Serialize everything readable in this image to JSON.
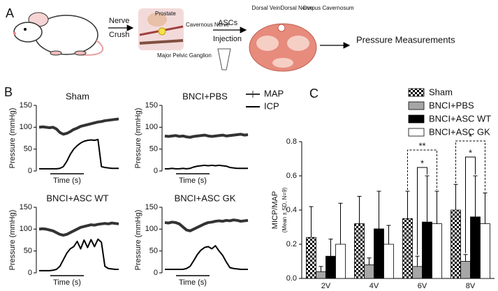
{
  "panel_a": {
    "label": "A",
    "nerve": "Nerve",
    "crush": "Crush",
    "prostate": "Prostate",
    "cavernous_nerve": "Cavernous Nerve",
    "ganglion": "Major Pelvic Ganglion",
    "ascs": "ASCs",
    "injection": "Injection",
    "dorsal_vein": "Dorsal Vein",
    "dorsal_nerve": "Dorsal Nerve",
    "corpus": "Corpus Cavernosum",
    "pressure": "Pressure Measurements"
  },
  "panel_b": {
    "label": "B"
  },
  "panel_c": {
    "label": "C"
  },
  "chart_data": [
    {
      "type": "line",
      "title": "Sham",
      "x_label": "Time (s)",
      "y_label": "Pressure (mmHg)",
      "ylim": [
        0,
        150
      ],
      "yticks": [
        0,
        50,
        100,
        150
      ],
      "series": [
        {
          "name": "MAP",
          "color": "#333333",
          "values": [
            100,
            101,
            100,
            99,
            100,
            96,
            88,
            84,
            86,
            90,
            95,
            98,
            102,
            104,
            106,
            108,
            110,
            112,
            113,
            115,
            116,
            117,
            118,
            119
          ]
        },
        {
          "name": "ICP",
          "color": "#000000",
          "values": [
            5,
            5,
            5,
            5,
            5,
            5,
            6,
            10,
            22,
            38,
            50,
            58,
            64,
            68,
            70,
            71,
            70,
            72,
            10,
            8,
            7,
            6,
            6,
            6
          ]
        }
      ]
    },
    {
      "type": "line",
      "title": "BNCI+PBS",
      "x_label": "Time (s)",
      "y_label": "Pressure (mmHg)",
      "ylim": [
        0,
        150
      ],
      "yticks": [
        0,
        50,
        100,
        150
      ],
      "series": [
        {
          "color": "#333333",
          "values": [
            80,
            79,
            80,
            81,
            79,
            80,
            78,
            77,
            79,
            80,
            81,
            82,
            80,
            79,
            80,
            81,
            82,
            80,
            81,
            82,
            83,
            84,
            82,
            83
          ]
        },
        {
          "color": "#000000",
          "values": [
            5,
            5,
            6,
            5,
            5,
            6,
            5,
            6,
            9,
            11,
            12,
            13,
            12,
            13,
            12,
            13,
            12,
            11,
            8,
            7,
            6,
            6,
            6,
            6
          ]
        }
      ]
    },
    {
      "type": "line",
      "title": "BNCI+ASC WT",
      "x_label": "Time (s)",
      "y_label": "Pressure (mmHg)",
      "ylim": [
        0,
        150
      ],
      "yticks": [
        0,
        50,
        100,
        150
      ],
      "series": [
        {
          "color": "#333333",
          "values": [
            100,
            101,
            100,
            98,
            96,
            92,
            88,
            86,
            88,
            92,
            96,
            100,
            104,
            106,
            108,
            110,
            109,
            111,
            112,
            113,
            112,
            114,
            113,
            112
          ]
        },
        {
          "color": "#000000",
          "values": [
            5,
            5,
            5,
            5,
            6,
            8,
            15,
            30,
            45,
            55,
            60,
            72,
            55,
            75,
            58,
            76,
            60,
            77,
            70,
            15,
            10,
            9,
            8,
            8
          ]
        }
      ]
    },
    {
      "type": "line",
      "title": "BNCI+ASC GK",
      "x_label": "Time (s)",
      "y_label": "Pressure (mmHg)",
      "ylim": [
        0,
        150
      ],
      "yticks": [
        0,
        50,
        100,
        150
      ],
      "series": [
        {
          "color": "#333333",
          "values": [
            115,
            114,
            116,
            115,
            112,
            105,
            98,
            96,
            100,
            104,
            108,
            112,
            115,
            116,
            118,
            119,
            118,
            120,
            119,
            121,
            120,
            118,
            119,
            120
          ]
        },
        {
          "color": "#000000",
          "values": [
            8,
            8,
            8,
            8,
            8,
            8,
            10,
            15,
            28,
            42,
            52,
            58,
            60,
            55,
            62,
            50,
            40,
            25,
            12,
            10,
            9,
            8,
            8,
            8
          ]
        }
      ]
    },
    {
      "type": "bar",
      "y_label": "MICP/MAP",
      "y_sublabel": "(Mean ± SD, N=9)",
      "categories": [
        "2V",
        "4V",
        "6V",
        "8V"
      ],
      "ylim": [
        0,
        0.8
      ],
      "yticks": [
        {
          "value": 0,
          "label": "0.0"
        },
        0.2,
        0.4,
        0.6,
        0.8
      ],
      "series": [
        {
          "name": "Sham",
          "color": "#000000",
          "pattern": "checkered",
          "values": [
            0.24,
            0.32,
            0.35,
            0.4
          ],
          "errors": [
            0.18,
            0.16,
            0.16,
            0.15
          ]
        },
        {
          "name": "BNCI+PBS",
          "color": "#a6a6a6",
          "values": [
            0.04,
            0.08,
            0.07,
            0.1
          ],
          "errors": [
            0.03,
            0.04,
            0.06,
            0.04
          ]
        },
        {
          "name": "BNCI+ASC WT",
          "color": "#000000",
          "values": [
            0.13,
            0.29,
            0.33,
            0.36
          ],
          "errors": [
            0.1,
            0.22,
            0.27,
            0.24
          ]
        },
        {
          "name": "BNCI+ASC GK",
          "color": "#ffffff",
          "values": [
            0.2,
            0.2,
            0.32,
            0.32
          ],
          "errors": [
            0.24,
            0.11,
            0.19,
            0.18
          ]
        }
      ],
      "annotations": [
        "**",
        "*",
        "*",
        "*"
      ]
    }
  ]
}
